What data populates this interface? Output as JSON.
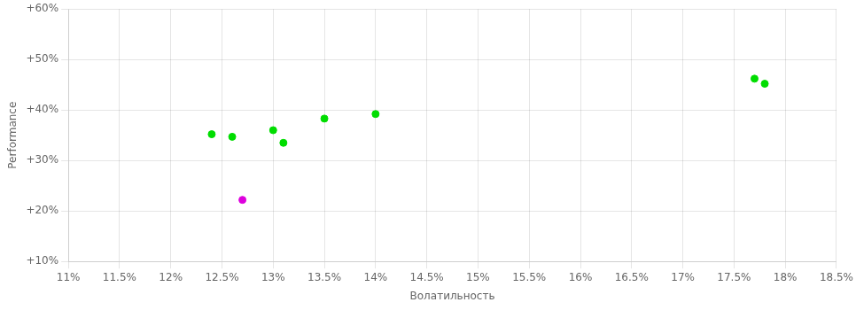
{
  "chart_data": {
    "type": "scatter",
    "xlabel": "Волатильность",
    "ylabel": "Performance",
    "xlim": [
      0.11,
      0.185
    ],
    "ylim": [
      0.1,
      0.6
    ],
    "xticks": [
      {
        "value": 0.11,
        "label": "11%"
      },
      {
        "value": 0.115,
        "label": "11.5%"
      },
      {
        "value": 0.12,
        "label": "12%"
      },
      {
        "value": 0.125,
        "label": "12.5%"
      },
      {
        "value": 0.13,
        "label": "13%"
      },
      {
        "value": 0.135,
        "label": "13.5%"
      },
      {
        "value": 0.14,
        "label": "14%"
      },
      {
        "value": 0.145,
        "label": "14.5%"
      },
      {
        "value": 0.15,
        "label": "15%"
      },
      {
        "value": 0.155,
        "label": "15.5%"
      },
      {
        "value": 0.16,
        "label": "16%"
      },
      {
        "value": 0.165,
        "label": "16.5%"
      },
      {
        "value": 0.17,
        "label": "17%"
      },
      {
        "value": 0.175,
        "label": "17.5%"
      },
      {
        "value": 0.18,
        "label": "18%"
      },
      {
        "value": 0.185,
        "label": "18.5%"
      }
    ],
    "yticks": [
      {
        "value": 0.1,
        "label": "+10%"
      },
      {
        "value": 0.2,
        "label": "+20%"
      },
      {
        "value": 0.3,
        "label": "+30%"
      },
      {
        "value": 0.4,
        "label": "+40%"
      },
      {
        "value": 0.5,
        "label": "+50%"
      },
      {
        "value": 0.6,
        "label": "+60%"
      }
    ],
    "grid": true,
    "series": [
      {
        "color": "#00dd00",
        "x": [
          0.124,
          0.126,
          0.13,
          0.131,
          0.135,
          0.14,
          0.177,
          0.178
        ],
        "values": [
          0.352,
          0.347,
          0.36,
          0.335,
          0.383,
          0.392,
          0.462,
          0.452
        ]
      },
      {
        "color": "#dd00dd",
        "x": [
          0.127
        ],
        "values": [
          0.222
        ]
      }
    ]
  }
}
